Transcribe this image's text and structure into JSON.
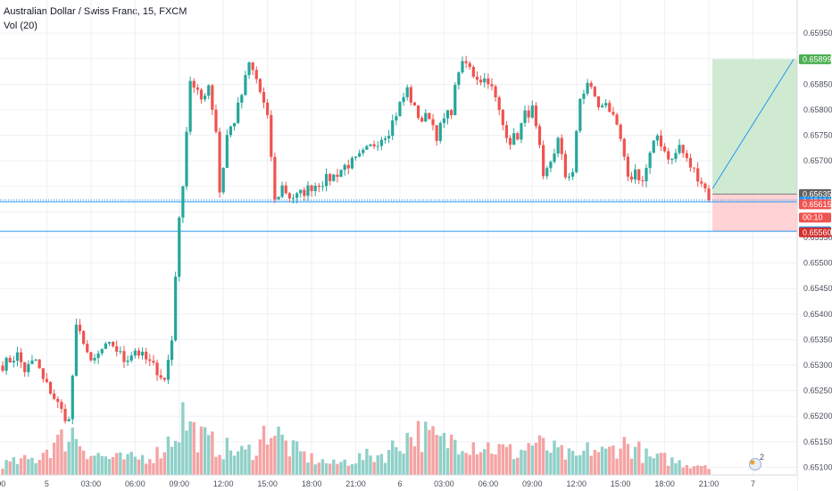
{
  "legend": {
    "symbol_line": "Australian Dollar / Swiss Franc, 15, FXCM",
    "volume_line": "Vol (20)"
  },
  "colors": {
    "up": "#26a69a",
    "down": "#ef5350",
    "vol_up": "#8fd0c8",
    "vol_down": "#f5a3a3",
    "grid": "#eef0f4",
    "level_line": "#2196f3",
    "target_zone": "#c8e6c9",
    "stop_zone": "#ffcdd2"
  },
  "icons": {
    "bottom_right": "globe-icon"
  },
  "badge_count": "2",
  "chart_data": {
    "type": "candlestick",
    "title": "Australian Dollar / Swiss Franc, 15, FXCM",
    "indicator": "Vol (20)",
    "ylim": [
      0.65085,
      0.66015
    ],
    "grid": true,
    "price_axis_labels": [
      "0.65950",
      "0.65850",
      "0.65800",
      "0.65750",
      "0.65700",
      "0.65550",
      "0.65500",
      "0.65450",
      "0.65400",
      "0.65350",
      "0.65300",
      "0.65250",
      "0.65200",
      "0.65150",
      "0.65100"
    ],
    "price_axis_values": [
      0.6595,
      0.6585,
      0.658,
      0.6575,
      0.657,
      0.6555,
      0.655,
      0.6545,
      0.654,
      0.6535,
      0.653,
      0.6525,
      0.652,
      0.6515,
      0.651
    ],
    "time_axis_labels": [
      ":00",
      "5",
      "03:00",
      "06:00",
      "09:00",
      "12:00",
      "15:00",
      "18:00",
      "21:00",
      "6",
      "03:00",
      "06:00",
      "09:00",
      "12:00",
      "15:00",
      "18:00",
      "21:00",
      "7"
    ],
    "time_axis_index": [
      -5,
      12,
      24,
      36,
      48,
      60,
      72,
      84,
      96,
      108,
      120,
      132,
      144,
      156,
      168,
      180,
      192,
      204
    ],
    "price_tags": [
      {
        "label": "0.65899",
        "value": 0.65899,
        "color": "#4caf50"
      },
      {
        "label": "0.65635",
        "value": 0.65635,
        "color": "#616161"
      },
      {
        "label": "0.65620",
        "value": 0.6562,
        "color": "#2196f3"
      },
      {
        "label": "0.65615",
        "value": 0.65615,
        "color": "#ef5350"
      },
      {
        "label": "00:10",
        "value": 0.65589,
        "color": "#ef5350"
      },
      {
        "label": "0.65562",
        "value": 0.65562,
        "color": "#2196f3"
      },
      {
        "label": "0.65560",
        "value": 0.6556,
        "color": "#d32f2f"
      }
    ],
    "horizontal_lines": [
      0.6562,
      0.65562
    ],
    "position_tool": {
      "entry": 0.65635,
      "target": 0.65899,
      "stop": 0.65562,
      "start_index": 192,
      "end_index": 203
    },
    "anchors": [
      [
        0,
        0.653
      ],
      [
        4,
        0.6532
      ],
      [
        6,
        0.6529
      ],
      [
        9,
        0.6531
      ],
      [
        11,
        0.6527
      ],
      [
        13,
        0.6525
      ],
      [
        16,
        0.6521
      ],
      [
        18,
        0.6519
      ],
      [
        20,
        0.6537
      ],
      [
        22,
        0.6535
      ],
      [
        24,
        0.653
      ],
      [
        27,
        0.6533
      ],
      [
        30,
        0.6534
      ],
      [
        33,
        0.6531
      ],
      [
        36,
        0.6533
      ],
      [
        39,
        0.6531
      ],
      [
        42,
        0.6529
      ],
      [
        44,
        0.6527
      ],
      [
        45,
        0.6531
      ],
      [
        46,
        0.6535
      ],
      [
        47,
        0.6548
      ],
      [
        48,
        0.6558
      ],
      [
        49,
        0.6566
      ],
      [
        50,
        0.6576
      ],
      [
        51,
        0.6586
      ],
      [
        52,
        0.6584
      ],
      [
        54,
        0.6582
      ],
      [
        56,
        0.6585
      ],
      [
        58,
        0.6576
      ],
      [
        59,
        0.6564
      ],
      [
        60,
        0.6569
      ],
      [
        61,
        0.6575
      ],
      [
        63,
        0.6578
      ],
      [
        65,
        0.6583
      ],
      [
        67,
        0.6589
      ],
      [
        69,
        0.6586
      ],
      [
        71,
        0.6581
      ],
      [
        72,
        0.6578
      ],
      [
        73,
        0.6571
      ],
      [
        74,
        0.6562
      ],
      [
        76,
        0.6565
      ],
      [
        78,
        0.6563
      ],
      [
        80,
        0.6563
      ],
      [
        82,
        0.6564
      ],
      [
        84,
        0.6565
      ],
      [
        87,
        0.6566
      ],
      [
        90,
        0.6567
      ],
      [
        93,
        0.6569
      ],
      [
        96,
        0.657
      ],
      [
        99,
        0.6572
      ],
      [
        102,
        0.6574
      ],
      [
        105,
        0.6576
      ],
      [
        108,
        0.6581
      ],
      [
        110,
        0.6584
      ],
      [
        112,
        0.658
      ],
      [
        114,
        0.6578
      ],
      [
        116,
        0.6579
      ],
      [
        118,
        0.6575
      ],
      [
        120,
        0.6578
      ],
      [
        122,
        0.658
      ],
      [
        124,
        0.6588
      ],
      [
        126,
        0.6589
      ],
      [
        128,
        0.6587
      ],
      [
        130,
        0.6586
      ],
      [
        132,
        0.6586
      ],
      [
        134,
        0.6582
      ],
      [
        136,
        0.6577
      ],
      [
        138,
        0.6574
      ],
      [
        140,
        0.6575
      ],
      [
        142,
        0.6579
      ],
      [
        144,
        0.658
      ],
      [
        146,
        0.6572
      ],
      [
        147,
        0.6566
      ],
      [
        149,
        0.657
      ],
      [
        151,
        0.6574
      ],
      [
        153,
        0.6567
      ],
      [
        155,
        0.6568
      ],
      [
        157,
        0.6582
      ],
      [
        159,
        0.6585
      ],
      [
        161,
        0.6583
      ],
      [
        162,
        0.658
      ],
      [
        164,
        0.6582
      ],
      [
        166,
        0.6578
      ],
      [
        168,
        0.6574
      ],
      [
        170,
        0.6566
      ],
      [
        172,
        0.6568
      ],
      [
        174,
        0.6566
      ],
      [
        176,
        0.6571
      ],
      [
        178,
        0.6575
      ],
      [
        180,
        0.6572
      ],
      [
        182,
        0.657
      ],
      [
        184,
        0.6573
      ],
      [
        186,
        0.657
      ],
      [
        188,
        0.6568
      ],
      [
        190,
        0.6566
      ],
      [
        192,
        0.6563
      ]
    ],
    "volume_profile": [
      [
        0,
        2
      ],
      [
        9,
        3
      ],
      [
        12,
        5
      ],
      [
        15,
        6
      ],
      [
        19,
        8
      ],
      [
        24,
        4
      ],
      [
        30,
        3
      ],
      [
        36,
        3
      ],
      [
        42,
        4
      ],
      [
        46,
        7
      ],
      [
        48,
        9
      ],
      [
        49,
        11
      ],
      [
        52,
        8
      ],
      [
        56,
        6
      ],
      [
        60,
        5
      ],
      [
        66,
        4
      ],
      [
        70,
        6
      ],
      [
        72,
        9
      ],
      [
        74,
        8
      ],
      [
        78,
        5
      ],
      [
        84,
        3
      ],
      [
        90,
        2
      ],
      [
        96,
        3
      ],
      [
        104,
        4
      ],
      [
        108,
        6
      ],
      [
        112,
        8
      ],
      [
        116,
        7
      ],
      [
        120,
        6
      ],
      [
        124,
        7
      ],
      [
        128,
        6
      ],
      [
        134,
        5
      ],
      [
        140,
        4
      ],
      [
        144,
        6
      ],
      [
        148,
        5
      ],
      [
        152,
        4
      ],
      [
        156,
        3
      ],
      [
        160,
        5
      ],
      [
        164,
        4
      ],
      [
        168,
        6
      ],
      [
        172,
        5
      ],
      [
        176,
        3
      ],
      [
        180,
        3
      ],
      [
        186,
        2
      ],
      [
        192,
        2
      ]
    ]
  }
}
